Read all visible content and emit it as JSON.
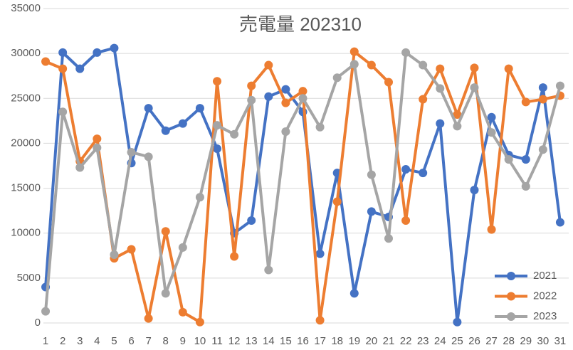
{
  "chart_data": {
    "type": "line",
    "title": "売電量 202310",
    "categories": [
      1,
      2,
      3,
      4,
      5,
      6,
      7,
      8,
      9,
      10,
      11,
      12,
      13,
      14,
      15,
      16,
      17,
      18,
      19,
      20,
      21,
      22,
      23,
      24,
      25,
      26,
      27,
      28,
      29,
      30,
      31
    ],
    "series": [
      {
        "name": "2021",
        "color": "#4472c4",
        "values": [
          4000,
          30100,
          28300,
          30100,
          30600,
          17800,
          23900,
          21400,
          22200,
          23900,
          19400,
          10000,
          11400,
          25200,
          26000,
          23500,
          7700,
          16700,
          3300,
          12400,
          11800,
          17100,
          16700,
          22200,
          100,
          14800,
          22900,
          18700,
          18200,
          26200,
          11200
        ]
      },
      {
        "name": "2022",
        "color": "#ed7d31",
        "values": [
          29100,
          28300,
          18000,
          20500,
          7200,
          8200,
          500,
          10200,
          1200,
          100,
          26900,
          7400,
          26400,
          28700,
          24500,
          25800,
          300,
          13500,
          30200,
          28700,
          26800,
          11400,
          24900,
          28300,
          23200,
          28400,
          10400,
          28300,
          24600,
          24900,
          25300
        ]
      },
      {
        "name": "2023",
        "color": "#a5a5a5",
        "values": [
          1300,
          23500,
          17300,
          19500,
          7600,
          19000,
          18500,
          3300,
          8400,
          14000,
          22000,
          21000,
          24800,
          5900,
          21300,
          25000,
          21800,
          27300,
          28800,
          16500,
          9400,
          30100,
          28700,
          26100,
          21900,
          26200,
          21200,
          18200,
          15200,
          19300,
          26400
        ]
      }
    ],
    "ylim": [
      0,
      35000
    ],
    "yticks": [
      0,
      5000,
      10000,
      15000,
      20000,
      25000,
      30000,
      35000
    ],
    "grid": true,
    "legend": "lower right"
  }
}
